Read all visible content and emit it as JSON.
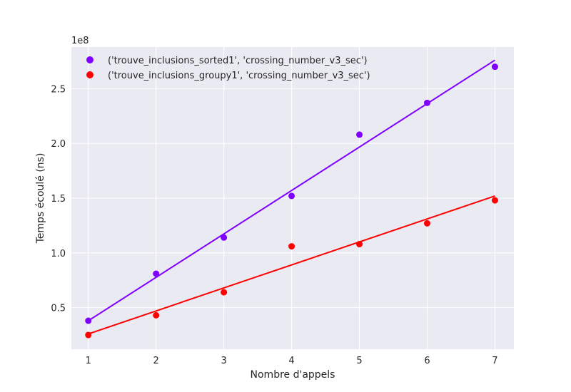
{
  "chart_data": {
    "type": "scatter",
    "title": "",
    "xlabel": "Nombre d'appels",
    "ylabel": "Temps écoulé (ns)",
    "y_offset_label": "1e8",
    "x_ticks": [
      1,
      2,
      3,
      4,
      5,
      6,
      7
    ],
    "y_ticks": [
      0.5,
      1.0,
      1.5,
      2.0,
      2.5
    ],
    "y_tick_labels": [
      "0.5",
      "1.0",
      "1.5",
      "2.0",
      "2.5"
    ],
    "xlim": [
      0.75,
      7.28
    ],
    "ylim": [
      0.12,
      2.88
    ],
    "grid": true,
    "legend_position": "upper-left",
    "series": [
      {
        "name": "('trouve_inclusions_sorted1', 'crossing_number_v3_sec')",
        "color": "#7f00ff",
        "x": [
          1,
          2,
          3,
          4,
          5,
          6,
          7
        ],
        "y": [
          0.38,
          0.81,
          1.14,
          1.52,
          2.08,
          2.37,
          2.7
        ],
        "fit": [
          0.38,
          2.76
        ]
      },
      {
        "name": "('trouve_inclusions_groupy1', 'crossing_number_v3_sec')",
        "color": "#ff0000",
        "x": [
          1,
          2,
          3,
          4,
          5,
          6,
          7
        ],
        "y": [
          0.25,
          0.43,
          0.64,
          1.06,
          1.08,
          1.27,
          1.48
        ],
        "fit": [
          0.26,
          1.52
        ]
      }
    ]
  }
}
